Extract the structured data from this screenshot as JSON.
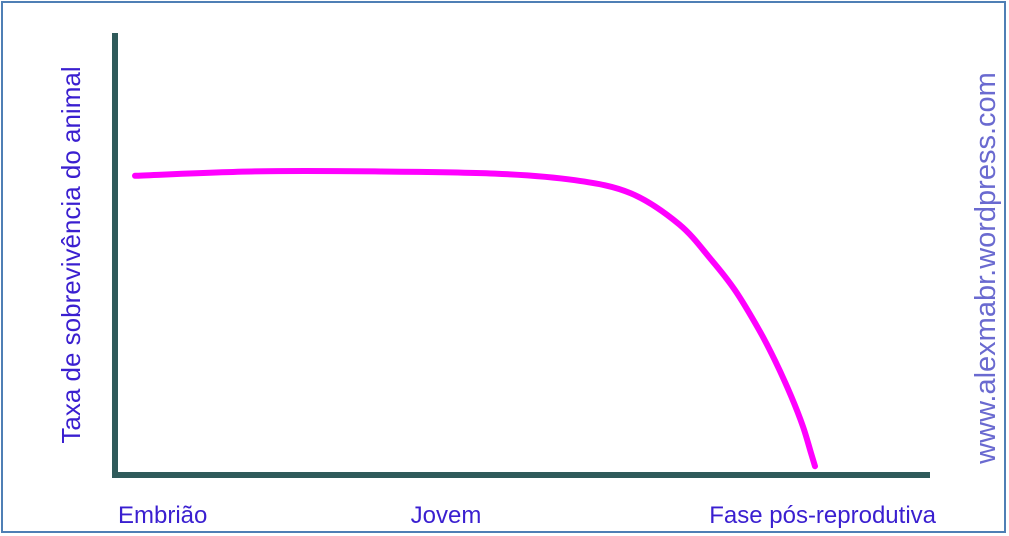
{
  "chart_data": {
    "type": "line",
    "title": "",
    "ylabel": "Taxa de sobrevivência do animal",
    "xlabel": "",
    "categories": [
      "Embrião",
      "Jovem",
      "Fase pós-reprodutiva"
    ],
    "x_range": [
      0,
      100
    ],
    "y_range": [
      0,
      100
    ],
    "series": [
      {
        "x": [
          0,
          15,
          30,
          45,
          55,
          62,
          68,
          72,
          75,
          78,
          80,
          82,
          83.5,
          84.5,
          85
        ],
        "values": [
          68,
          69,
          69,
          68.5,
          67,
          64,
          57,
          49,
          42,
          33,
          26,
          18,
          11,
          5,
          2
        ]
      }
    ],
    "grid": false
  },
  "watermark": "www.alexmabr.wordpress.com",
  "colors": {
    "axis": "#2f5a5a",
    "line": "#ff00ff",
    "label": "#3a1fd0",
    "watermark": "#6a6ad0",
    "border": "#4f7fb5"
  }
}
